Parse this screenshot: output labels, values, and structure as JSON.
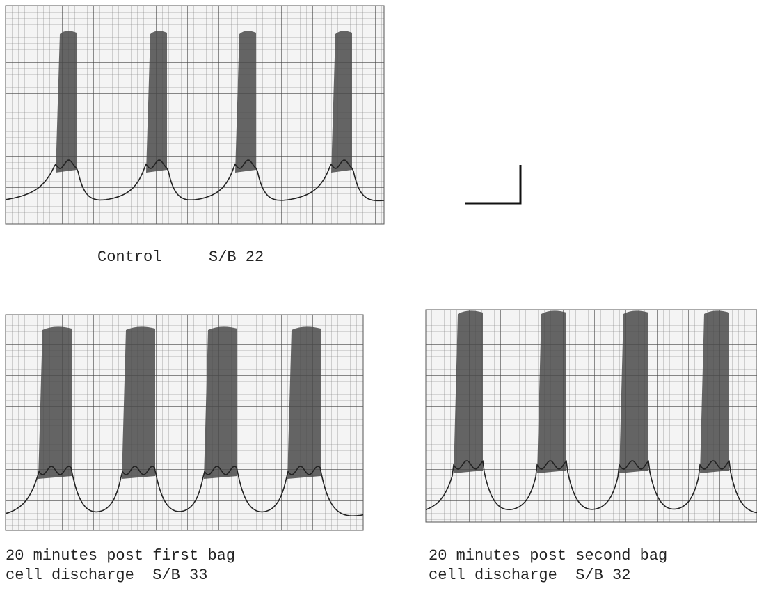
{
  "panels": [
    {
      "caption": "Control",
      "ratio": "S/B 22"
    },
    {
      "caption": [
        "20 minutes post first bag",
        "cell discharge  S/B 33"
      ]
    },
    {
      "caption": [
        "20 minutes post second bag",
        "cell discharge  S/B 32"
      ]
    }
  ]
}
